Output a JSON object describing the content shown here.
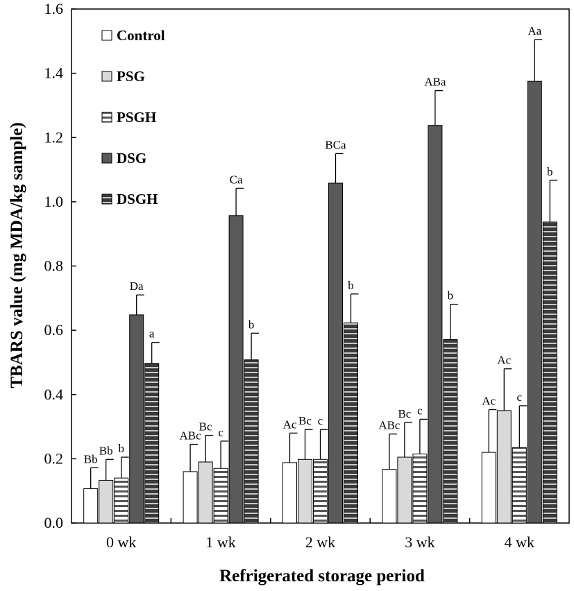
{
  "chart_data": {
    "type": "bar",
    "xlabel": "Refrigerated storage period",
    "ylabel": "TBARS value (mg MDA/kg sample)",
    "ylim": [
      0,
      1.6
    ],
    "yticks": [
      "0.0",
      "0.2",
      "0.4",
      "0.6",
      "0.8",
      "1.0",
      "1.2",
      "1.4",
      "1.6"
    ],
    "grid": false,
    "legend_position": "top-left",
    "categories": [
      "0 wk",
      "1 wk",
      "2 wk",
      "3 wk",
      "4 wk"
    ],
    "series": [
      {
        "name": "Control",
        "pattern": "white",
        "values": [
          0.107,
          0.16,
          0.188,
          0.167,
          0.22
        ],
        "errors": [
          0.065,
          0.085,
          0.092,
          0.11,
          0.133
        ],
        "labels": [
          "Bb",
          "ABc",
          "Ac",
          "ABc",
          "Ac"
        ]
      },
      {
        "name": "PSG",
        "pattern": "light-gray",
        "values": [
          0.133,
          0.19,
          0.198,
          0.205,
          0.35
        ],
        "errors": [
          0.065,
          0.083,
          0.093,
          0.108,
          0.13
        ],
        "labels": [
          "Bb",
          "Bc",
          "Bc",
          "Bc",
          "Ac"
        ]
      },
      {
        "name": "PSGH",
        "pattern": "horizontal-lines",
        "values": [
          0.14,
          0.17,
          0.198,
          0.215,
          0.235
        ],
        "errors": [
          0.065,
          0.085,
          0.093,
          0.108,
          0.13
        ],
        "labels": [
          "b",
          "c",
          "c",
          "c",
          "c"
        ]
      },
      {
        "name": "DSG",
        "pattern": "dark-gray",
        "values": [
          0.648,
          0.957,
          1.058,
          1.238,
          1.375
        ],
        "errors": [
          0.062,
          0.085,
          0.092,
          0.108,
          0.13
        ],
        "labels": [
          "Da",
          "Ca",
          "BCa",
          "ABa",
          "Aa"
        ]
      },
      {
        "name": "DSGH",
        "pattern": "dark-horizontal-lines",
        "values": [
          0.497,
          0.508,
          0.623,
          0.571,
          0.937
        ],
        "errors": [
          0.065,
          0.083,
          0.09,
          0.11,
          0.13
        ],
        "labels": [
          "a",
          "b",
          "b",
          "b",
          "b"
        ]
      }
    ],
    "colors": {
      "Control": "#ffffff",
      "PSG": "#d9d9d9",
      "PSGH_bg": "#ffffff",
      "PSGH_line": "#555555",
      "DSG": "#595959",
      "DSGH_bg": "#3a3a3a",
      "DSGH_line": "#c8c8c8",
      "stroke": "#000000"
    }
  }
}
